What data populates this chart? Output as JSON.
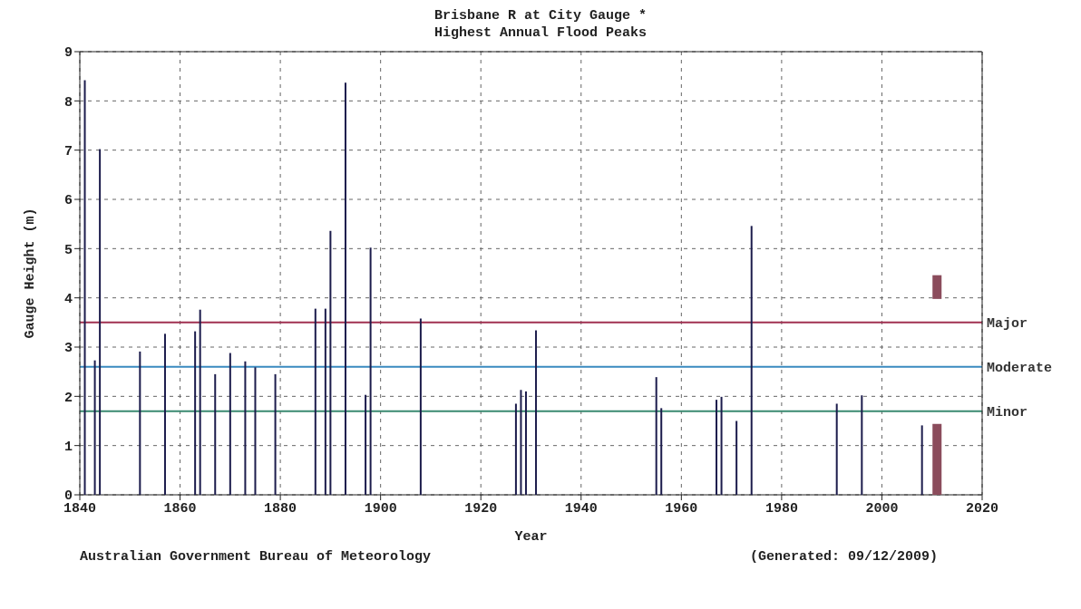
{
  "chart_data": {
    "type": "bar",
    "title": "Brisbane R at City Gauge *",
    "subtitle": "Highest Annual Flood Peaks",
    "xlabel": "Year",
    "ylabel": "Gauge Height (m)",
    "annotations": [
      "Australian Government Bureau of Meteorology",
      "(Generated: 09/12/2009)"
    ],
    "series": [
      {
        "color": "#1c1c4c",
        "x": [
          1841,
          1843,
          1844,
          1852,
          1857,
          1863,
          1864,
          1867,
          1870,
          1873,
          1875,
          1879,
          1887,
          1889,
          1890,
          1893,
          1897,
          1898,
          1908,
          1927,
          1928,
          1929,
          1931,
          1955,
          1956,
          1967,
          1968,
          1971,
          1974,
          1991,
          1996,
          2008
        ],
        "values": [
          8.42,
          2.73,
          7.02,
          2.91,
          3.27,
          3.32,
          3.76,
          2.45,
          2.88,
          2.71,
          2.59,
          2.45,
          3.78,
          3.78,
          5.36,
          8.37,
          2.03,
          5.02,
          3.58,
          1.85,
          2.13,
          2.1,
          3.34,
          2.39,
          1.76,
          1.93,
          1.99,
          1.5,
          5.46,
          1.85,
          2.02,
          1.41
        ]
      },
      {
        "color": "#8b4c5c",
        "x": [
          2011,
          2011
        ],
        "base": [
          0,
          3.97
        ],
        "values": [
          1.44,
          0.49
        ]
      }
    ],
    "xlim": [
      1840,
      2020
    ],
    "xticks": [
      1840,
      1860,
      1880,
      1900,
      1920,
      1940,
      1960,
      1980,
      2000,
      2020
    ],
    "ylim": [
      0,
      9
    ],
    "yticks": [
      0,
      1,
      2,
      3,
      4,
      5,
      6,
      7,
      8,
      9
    ],
    "grid": true,
    "ref_lines": [
      {
        "axis": "y",
        "value": 3.5,
        "label": "Major",
        "color": "#a03050"
      },
      {
        "axis": "y",
        "value": 2.6,
        "label": "Moderate",
        "color": "#3a8ac0"
      },
      {
        "axis": "y",
        "value": 1.7,
        "label": "Minor",
        "color": "#3a8a70"
      }
    ]
  }
}
